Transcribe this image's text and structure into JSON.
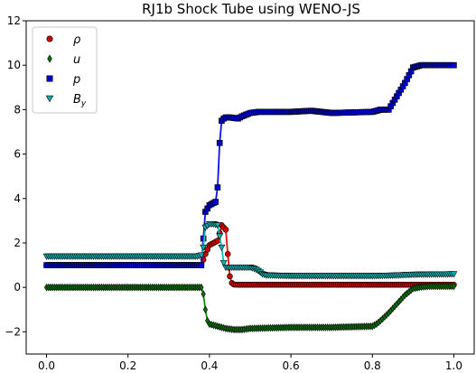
{
  "chart_data": {
    "type": "line",
    "title": "RJ1b Shock Tube using WENO-JS",
    "xlabel": "",
    "ylabel": "",
    "xlim": [
      -0.05,
      1.05
    ],
    "ylim": [
      -3,
      12
    ],
    "xticks": [
      0.0,
      0.2,
      0.4,
      0.6,
      0.8,
      1.0
    ],
    "xtick_labels": [
      "0.0",
      "0.2",
      "0.4",
      "0.6",
      "0.8",
      "1.0"
    ],
    "yticks": [
      -2,
      0,
      2,
      4,
      6,
      8,
      10,
      12
    ],
    "ytick_labels": [
      "−2",
      "0",
      "2",
      "4",
      "6",
      "8",
      "10",
      "12"
    ],
    "grid": false,
    "legend_position": "top-left",
    "series": [
      {
        "name": "ρ",
        "line_color": "#e01010",
        "marker": "circle",
        "marker_color": "#cc0000",
        "x": [
          0.0,
          0.38,
          0.39,
          0.4,
          0.41,
          0.42,
          0.43,
          0.44,
          0.445,
          0.45,
          0.455,
          0.46,
          0.47,
          0.5,
          0.7,
          0.85,
          1.0
        ],
        "y": [
          1.0,
          1.0,
          1.5,
          1.9,
          2.0,
          2.1,
          2.8,
          2.6,
          1.5,
          0.5,
          0.2,
          0.13,
          0.12,
          0.12,
          0.12,
          0.12,
          0.12
        ]
      },
      {
        "name": "u",
        "line_color": "#109010",
        "marker": "diamond",
        "marker_color": "#0a6e0a",
        "x": [
          0.0,
          0.38,
          0.385,
          0.39,
          0.395,
          0.4,
          0.41,
          0.42,
          0.44,
          0.46,
          0.48,
          0.5,
          0.6,
          0.7,
          0.8,
          0.81,
          0.82,
          0.84,
          0.86,
          0.88,
          0.9,
          0.92,
          0.94,
          1.0
        ],
        "y": [
          0.0,
          0.0,
          -0.3,
          -1.0,
          -1.5,
          -1.65,
          -1.7,
          -1.75,
          -1.85,
          -1.9,
          -1.9,
          -1.85,
          -1.8,
          -1.8,
          -1.75,
          -1.65,
          -1.5,
          -1.15,
          -0.75,
          -0.35,
          -0.05,
          0.02,
          0.05,
          0.05
        ]
      },
      {
        "name": "p",
        "line_color": "#1010e0",
        "marker": "square",
        "marker_color": "#0000cc",
        "x": [
          0.0,
          0.38,
          0.385,
          0.39,
          0.4,
          0.41,
          0.415,
          0.42,
          0.425,
          0.43,
          0.435,
          0.44,
          0.45,
          0.47,
          0.48,
          0.5,
          0.52,
          0.6,
          0.65,
          0.7,
          0.8,
          0.82,
          0.84,
          0.86,
          0.88,
          0.9,
          0.92,
          1.0
        ],
        "y": [
          1.0,
          1.0,
          2.2,
          3.4,
          3.7,
          3.8,
          3.85,
          4.5,
          6.5,
          7.5,
          7.6,
          7.65,
          7.65,
          7.6,
          7.7,
          7.85,
          7.9,
          7.9,
          7.95,
          7.85,
          7.9,
          8.0,
          8.0,
          8.6,
          9.2,
          9.9,
          10.0,
          10.0
        ]
      },
      {
        "name": "B_y",
        "line_color": "#10c0c0",
        "marker": "triangle-down",
        "marker_color": "#10b0b0",
        "x": [
          0.0,
          0.37,
          0.38,
          0.385,
          0.39,
          0.4,
          0.41,
          0.42,
          0.43,
          0.435,
          0.44,
          0.445,
          0.45,
          0.47,
          0.5,
          0.51,
          0.52,
          0.53,
          0.54,
          0.6,
          0.7,
          0.8,
          0.85,
          0.9,
          1.0
        ],
        "y": [
          1.4,
          1.4,
          1.45,
          1.8,
          2.7,
          2.85,
          2.85,
          2.8,
          1.8,
          1.1,
          0.9,
          0.9,
          0.9,
          0.9,
          0.9,
          0.85,
          0.75,
          0.6,
          0.55,
          0.52,
          0.52,
          0.52,
          0.54,
          0.58,
          0.6
        ]
      }
    ]
  }
}
